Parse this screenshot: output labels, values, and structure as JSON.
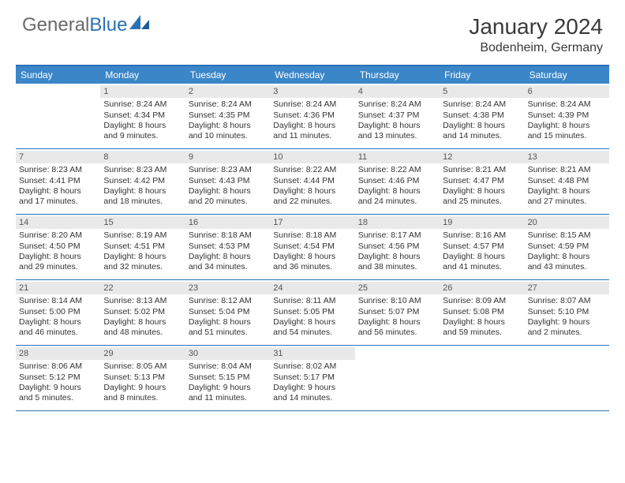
{
  "brand": {
    "part1": "General",
    "part2": "Blue"
  },
  "title": "January 2024",
  "location": "Bodenheim, Germany",
  "colors": {
    "header_bg": "#3a86c8",
    "border": "#2a72b5",
    "daynum_bg": "#e9e9e9",
    "text": "#333333",
    "brand_gray": "#6a6a6a",
    "brand_blue": "#2a72b5"
  },
  "weekdays": [
    "Sunday",
    "Monday",
    "Tuesday",
    "Wednesday",
    "Thursday",
    "Friday",
    "Saturday"
  ],
  "weeks": [
    [
      {
        "n": "",
        "t": ""
      },
      {
        "n": "1",
        "t": "Sunrise: 8:24 AM\nSunset: 4:34 PM\nDaylight: 8 hours\nand 9 minutes."
      },
      {
        "n": "2",
        "t": "Sunrise: 8:24 AM\nSunset: 4:35 PM\nDaylight: 8 hours\nand 10 minutes."
      },
      {
        "n": "3",
        "t": "Sunrise: 8:24 AM\nSunset: 4:36 PM\nDaylight: 8 hours\nand 11 minutes."
      },
      {
        "n": "4",
        "t": "Sunrise: 8:24 AM\nSunset: 4:37 PM\nDaylight: 8 hours\nand 13 minutes."
      },
      {
        "n": "5",
        "t": "Sunrise: 8:24 AM\nSunset: 4:38 PM\nDaylight: 8 hours\nand 14 minutes."
      },
      {
        "n": "6",
        "t": "Sunrise: 8:24 AM\nSunset: 4:39 PM\nDaylight: 8 hours\nand 15 minutes."
      }
    ],
    [
      {
        "n": "7",
        "t": "Sunrise: 8:23 AM\nSunset: 4:41 PM\nDaylight: 8 hours\nand 17 minutes."
      },
      {
        "n": "8",
        "t": "Sunrise: 8:23 AM\nSunset: 4:42 PM\nDaylight: 8 hours\nand 18 minutes."
      },
      {
        "n": "9",
        "t": "Sunrise: 8:23 AM\nSunset: 4:43 PM\nDaylight: 8 hours\nand 20 minutes."
      },
      {
        "n": "10",
        "t": "Sunrise: 8:22 AM\nSunset: 4:44 PM\nDaylight: 8 hours\nand 22 minutes."
      },
      {
        "n": "11",
        "t": "Sunrise: 8:22 AM\nSunset: 4:46 PM\nDaylight: 8 hours\nand 24 minutes."
      },
      {
        "n": "12",
        "t": "Sunrise: 8:21 AM\nSunset: 4:47 PM\nDaylight: 8 hours\nand 25 minutes."
      },
      {
        "n": "13",
        "t": "Sunrise: 8:21 AM\nSunset: 4:48 PM\nDaylight: 8 hours\nand 27 minutes."
      }
    ],
    [
      {
        "n": "14",
        "t": "Sunrise: 8:20 AM\nSunset: 4:50 PM\nDaylight: 8 hours\nand 29 minutes."
      },
      {
        "n": "15",
        "t": "Sunrise: 8:19 AM\nSunset: 4:51 PM\nDaylight: 8 hours\nand 32 minutes."
      },
      {
        "n": "16",
        "t": "Sunrise: 8:18 AM\nSunset: 4:53 PM\nDaylight: 8 hours\nand 34 minutes."
      },
      {
        "n": "17",
        "t": "Sunrise: 8:18 AM\nSunset: 4:54 PM\nDaylight: 8 hours\nand 36 minutes."
      },
      {
        "n": "18",
        "t": "Sunrise: 8:17 AM\nSunset: 4:56 PM\nDaylight: 8 hours\nand 38 minutes."
      },
      {
        "n": "19",
        "t": "Sunrise: 8:16 AM\nSunset: 4:57 PM\nDaylight: 8 hours\nand 41 minutes."
      },
      {
        "n": "20",
        "t": "Sunrise: 8:15 AM\nSunset: 4:59 PM\nDaylight: 8 hours\nand 43 minutes."
      }
    ],
    [
      {
        "n": "21",
        "t": "Sunrise: 8:14 AM\nSunset: 5:00 PM\nDaylight: 8 hours\nand 46 minutes."
      },
      {
        "n": "22",
        "t": "Sunrise: 8:13 AM\nSunset: 5:02 PM\nDaylight: 8 hours\nand 48 minutes."
      },
      {
        "n": "23",
        "t": "Sunrise: 8:12 AM\nSunset: 5:04 PM\nDaylight: 8 hours\nand 51 minutes."
      },
      {
        "n": "24",
        "t": "Sunrise: 8:11 AM\nSunset: 5:05 PM\nDaylight: 8 hours\nand 54 minutes."
      },
      {
        "n": "25",
        "t": "Sunrise: 8:10 AM\nSunset: 5:07 PM\nDaylight: 8 hours\nand 56 minutes."
      },
      {
        "n": "26",
        "t": "Sunrise: 8:09 AM\nSunset: 5:08 PM\nDaylight: 8 hours\nand 59 minutes."
      },
      {
        "n": "27",
        "t": "Sunrise: 8:07 AM\nSunset: 5:10 PM\nDaylight: 9 hours\nand 2 minutes."
      }
    ],
    [
      {
        "n": "28",
        "t": "Sunrise: 8:06 AM\nSunset: 5:12 PM\nDaylight: 9 hours\nand 5 minutes."
      },
      {
        "n": "29",
        "t": "Sunrise: 8:05 AM\nSunset: 5:13 PM\nDaylight: 9 hours\nand 8 minutes."
      },
      {
        "n": "30",
        "t": "Sunrise: 8:04 AM\nSunset: 5:15 PM\nDaylight: 9 hours\nand 11 minutes."
      },
      {
        "n": "31",
        "t": "Sunrise: 8:02 AM\nSunset: 5:17 PM\nDaylight: 9 hours\nand 14 minutes."
      },
      {
        "n": "",
        "t": ""
      },
      {
        "n": "",
        "t": ""
      },
      {
        "n": "",
        "t": ""
      }
    ]
  ]
}
